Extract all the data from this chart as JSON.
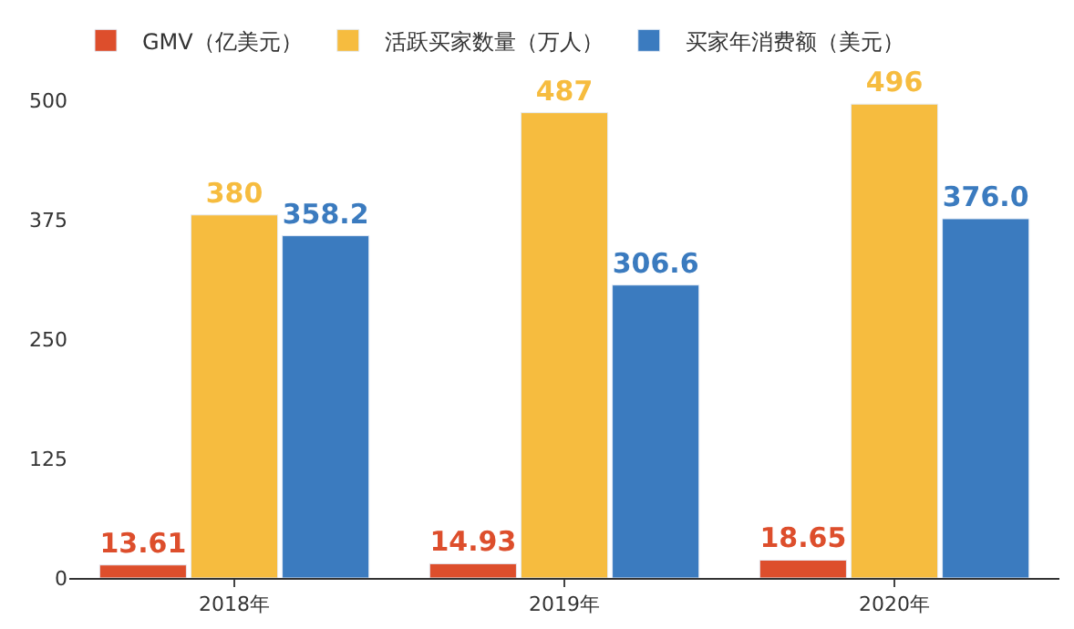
{
  "chart_data": {
    "type": "bar",
    "categories": [
      "2018年",
      "2019年",
      "2020年"
    ],
    "series": [
      {
        "name": "GMV（亿美元）",
        "color": "#dd4e2c",
        "values": [
          13.61,
          14.93,
          18.65
        ],
        "value_labels": [
          "13.61",
          "14.93",
          "18.65"
        ]
      },
      {
        "name": "活跃买家数量（万人）",
        "color": "#f6bc3f",
        "values": [
          380,
          487,
          496
        ],
        "value_labels": [
          "380",
          "487",
          "496"
        ]
      },
      {
        "name": "买家年消费额（美元）",
        "color": "#3b7bbf",
        "values": [
          358.2,
          306.6,
          376.0
        ],
        "value_labels": [
          "358.2",
          "306.6",
          "376.0"
        ]
      }
    ],
    "ylim": [
      0,
      500
    ],
    "yticks": [
      0,
      125,
      250,
      375,
      500
    ],
    "legend": "top left"
  }
}
